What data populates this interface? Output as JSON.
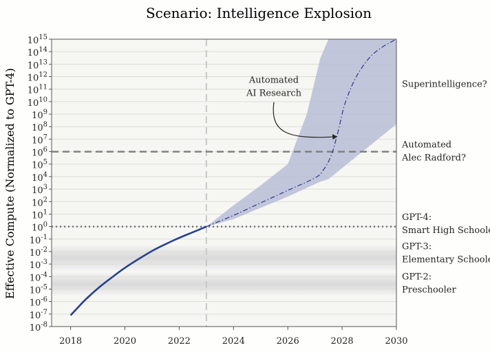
{
  "chart_data": {
    "type": "line",
    "title": "Scenario: Intelligence Explosion",
    "xlabel": "",
    "ylabel": "Effective Compute (Normalized to GPT-4)",
    "xlim": [
      2017.3,
      2030
    ],
    "y_log_exponent_range": [
      -8,
      15
    ],
    "y_scale": "log10",
    "grid": "horizontal",
    "x_ticks": [
      "2018",
      "2020",
      "2022",
      "2024",
      "2026",
      "2028",
      "2030"
    ],
    "x_tick_values": [
      2018,
      2020,
      2022,
      2024,
      2026,
      2028,
      2030
    ],
    "y_tick_exponents": [
      -8,
      -7,
      -6,
      -5,
      -4,
      -3,
      -2,
      -1,
      0,
      1,
      2,
      3,
      4,
      5,
      6,
      7,
      8,
      9,
      10,
      11,
      12,
      13,
      14,
      15
    ],
    "y_tick_base": "10",
    "series": [
      {
        "style": "solid",
        "color": "#26408f",
        "x": [
          2018,
          2018.5,
          2019,
          2019.5,
          2020,
          2020.5,
          2021,
          2021.5,
          2022,
          2022.5,
          2023
        ],
        "log10_y": [
          -7.1,
          -5.95,
          -4.95,
          -4.1,
          -3.3,
          -2.6,
          -1.95,
          -1.4,
          -0.9,
          -0.45,
          0
        ]
      },
      {
        "style": "dash-dot",
        "color": "#3a3f8f",
        "x": [
          2023,
          2024,
          2025,
          2026,
          2027,
          2027.3,
          2027.6,
          2027.85,
          2028.1,
          2028.5,
          2029,
          2029.5,
          2030
        ],
        "log10_y": [
          0,
          0.9,
          1.9,
          2.9,
          3.9,
          4.5,
          5.7,
          7.6,
          9.8,
          11.9,
          13.5,
          14.4,
          15.0
        ]
      }
    ],
    "uncertainty_band": {
      "color": "#b9bdd6",
      "x": [
        2023,
        2024,
        2025,
        2026,
        2026.7,
        2027.2,
        2027.5,
        2030
      ],
      "upper_log10_y": [
        0,
        1.7,
        3.3,
        5.0,
        9.0,
        13.5,
        15.5,
        15.5
      ],
      "lower_log10_y": [
        0,
        0.6,
        1.5,
        2.4,
        3.1,
        3.6,
        3.8,
        8.2
      ]
    },
    "reference_lines": [
      {
        "orientation": "vertical",
        "x": 2023,
        "style": "dashed",
        "color": "#c8c8c8"
      },
      {
        "orientation": "horizontal",
        "log10_y": 6,
        "style": "dashed",
        "color": "#808080",
        "label": [
          "Automated",
          "Alec Radford?"
        ]
      },
      {
        "orientation": "horizontal",
        "log10_y": 0,
        "style": "dotted",
        "color": "#707070",
        "label": [
          "GPT-4:",
          "Smart High Schooler"
        ]
      }
    ],
    "shaded_bands": [
      {
        "log10_y_range": [
          -3.5,
          -1.5
        ],
        "label": [
          "GPT-3:",
          "Elementary Schooler"
        ]
      },
      {
        "log10_y_range": [
          -5.5,
          -3.7
        ],
        "label": [
          "GPT-2:",
          "Preschooler"
        ]
      }
    ],
    "annotations": [
      {
        "lines": [
          "Superintelligence?"
        ],
        "log10_y": 11.4
      },
      {
        "lines": [
          "Automated",
          "AI Research"
        ],
        "arrow_to": [
          2027.8,
          7.2
        ]
      }
    ]
  }
}
